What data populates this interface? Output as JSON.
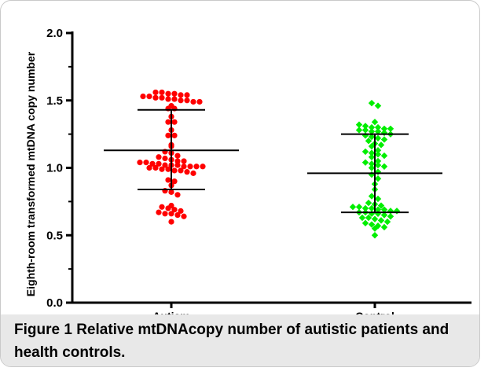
{
  "figure": {
    "label": "Figure 1",
    "caption": "Relative mtDNAcopy number of autistic patients and health controls."
  },
  "chart_data": {
    "type": "scatter",
    "title": "",
    "xlabel": "",
    "ylabel": "Eighth-room transformed  mtDNA copy number",
    "ylim": [
      0,
      2.0
    ],
    "yticks": [
      "0.0",
      "0.5",
      "1.0",
      "1.5",
      "2.0"
    ],
    "categories": [
      "Autism",
      "Control"
    ],
    "grid": false,
    "legend": "none",
    "series": [
      {
        "category": "Autism",
        "color": "#ff0000",
        "marker": "circle",
        "mean": 1.13,
        "sd_upper": 1.43,
        "sd_lower": 0.84,
        "values": [
          1.56,
          1.56,
          1.55,
          1.55,
          1.54,
          1.54,
          1.53,
          1.53,
          1.52,
          1.52,
          1.51,
          1.51,
          1.5,
          1.5,
          1.49,
          1.49,
          1.46,
          1.44,
          1.44,
          1.38,
          1.34,
          1.34,
          1.28,
          1.24,
          1.24,
          1.17,
          1.16,
          1.12,
          1.11,
          1.09,
          1.08,
          1.07,
          1.06,
          1.05,
          1.05,
          1.04,
          1.04,
          1.03,
          1.03,
          1.02,
          1.02,
          1.02,
          1.01,
          1.01,
          1.01,
          1.01,
          1.0,
          1.0,
          0.99,
          0.99,
          0.98,
          0.98,
          0.97,
          0.96,
          0.91,
          0.9,
          0.87,
          0.83,
          0.82,
          0.8,
          0.72,
          0.71,
          0.7,
          0.69,
          0.68,
          0.67,
          0.66,
          0.66,
          0.65,
          0.64,
          0.6
        ]
      },
      {
        "category": "Control",
        "color": "#00ee00",
        "marker": "diamond",
        "mean": 0.96,
        "sd_upper": 1.25,
        "sd_lower": 0.67,
        "values": [
          1.48,
          1.46,
          1.34,
          1.32,
          1.31,
          1.3,
          1.3,
          1.29,
          1.29,
          1.28,
          1.28,
          1.27,
          1.27,
          1.26,
          1.25,
          1.24,
          1.23,
          1.22,
          1.21,
          1.2,
          1.18,
          1.17,
          1.16,
          1.13,
          1.12,
          1.11,
          1.1,
          1.09,
          1.08,
          1.05,
          1.04,
          1.03,
          1.02,
          1.01,
          1.0,
          0.97,
          0.95,
          0.92,
          0.88,
          0.84,
          0.79,
          0.77,
          0.74,
          0.73,
          0.72,
          0.71,
          0.71,
          0.7,
          0.7,
          0.69,
          0.69,
          0.68,
          0.68,
          0.67,
          0.67,
          0.66,
          0.66,
          0.65,
          0.64,
          0.63,
          0.63,
          0.62,
          0.61,
          0.6,
          0.59,
          0.58,
          0.57,
          0.56,
          0.55,
          0.5
        ]
      }
    ]
  }
}
